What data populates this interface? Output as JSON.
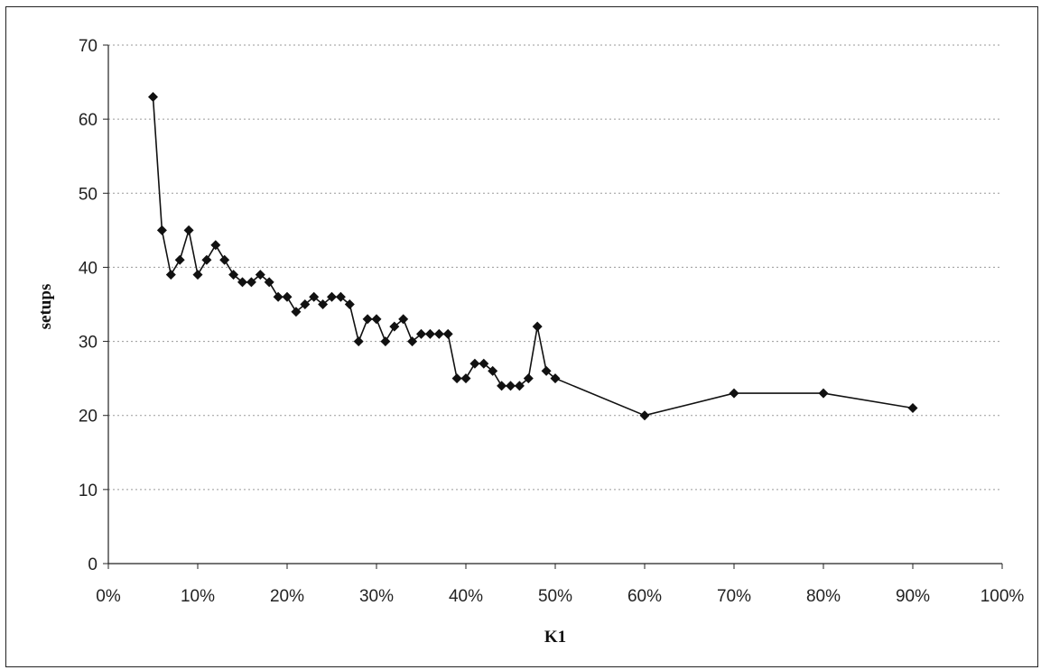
{
  "chart_data": {
    "type": "line",
    "title": "",
    "xlabel": "K1",
    "ylabel": "setups",
    "xlim": [
      0,
      1
    ],
    "ylim": [
      0,
      70
    ],
    "x_ticks": [
      "0%",
      "10%",
      "20%",
      "30%",
      "40%",
      "50%",
      "60%",
      "70%",
      "80%",
      "90%",
      "100%"
    ],
    "y_ticks": [
      "0",
      "10",
      "20",
      "30",
      "40",
      "50",
      "60",
      "70"
    ],
    "grid": "horizontal-dotted",
    "legend": "none",
    "marker": "diamond",
    "color": "#111111",
    "series": [
      {
        "x": [
          0.05,
          0.06,
          0.07,
          0.08,
          0.09,
          0.1,
          0.11,
          0.12,
          0.13,
          0.14,
          0.15,
          0.16,
          0.17,
          0.18,
          0.19,
          0.2,
          0.21,
          0.22,
          0.23,
          0.24,
          0.25,
          0.26,
          0.27,
          0.28,
          0.29,
          0.3,
          0.31,
          0.32,
          0.33,
          0.34,
          0.35,
          0.36,
          0.37,
          0.38,
          0.39,
          0.4,
          0.41,
          0.42,
          0.43,
          0.44,
          0.45,
          0.46,
          0.47,
          0.48,
          0.49,
          0.5,
          0.6,
          0.7,
          0.8,
          0.9
        ],
        "y": [
          63,
          45,
          39,
          41,
          45,
          39,
          41,
          43,
          41,
          39,
          38,
          38,
          39,
          38,
          36,
          36,
          34,
          35,
          36,
          35,
          36,
          36,
          35,
          30,
          33,
          33,
          30,
          32,
          33,
          30,
          31,
          31,
          31,
          31,
          25,
          25,
          27,
          27,
          26,
          24,
          24,
          24,
          25,
          32,
          26,
          25,
          20,
          23,
          23,
          21
        ]
      }
    ]
  }
}
